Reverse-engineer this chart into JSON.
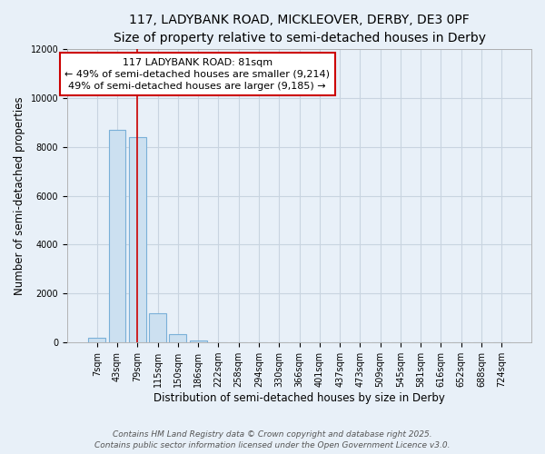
{
  "title_line1": "117, LADYBANK ROAD, MICKLEOVER, DERBY, DE3 0PF",
  "title_line2": "Size of property relative to semi-detached houses in Derby",
  "xlabel": "Distribution of semi-detached houses by size in Derby",
  "ylabel": "Number of semi-detached properties",
  "bin_labels": [
    "7sqm",
    "43sqm",
    "79sqm",
    "115sqm",
    "150sqm",
    "186sqm",
    "222sqm",
    "258sqm",
    "294sqm",
    "330sqm",
    "366sqm",
    "401sqm",
    "437sqm",
    "473sqm",
    "509sqm",
    "545sqm",
    "581sqm",
    "616sqm",
    "652sqm",
    "688sqm",
    "724sqm"
  ],
  "bar_heights": [
    200,
    8700,
    8400,
    1200,
    350,
    100,
    0,
    0,
    0,
    0,
    0,
    0,
    0,
    0,
    0,
    0,
    0,
    0,
    0,
    0,
    0
  ],
  "bar_color": "#cce0f0",
  "bar_edge_color": "#7ab0d8",
  "bar_edge_width": 0.8,
  "red_line_x": 2.0,
  "annotation_title": "117 LADYBANK ROAD: 81sqm",
  "annotation_line2": "← 49% of semi-detached houses are smaller (9,214)",
  "annotation_line3": "49% of semi-detached houses are larger (9,185) →",
  "annotation_box_color": "#cc0000",
  "ylim": [
    0,
    12000
  ],
  "yticks": [
    0,
    2000,
    4000,
    6000,
    8000,
    10000,
    12000
  ],
  "grid_color": "#c8d4e0",
  "background_color": "#e8f0f8",
  "footer_line1": "Contains HM Land Registry data © Crown copyright and database right 2025.",
  "footer_line2": "Contains public sector information licensed under the Open Government Licence v3.0.",
  "title_fontsize": 10,
  "subtitle_fontsize": 9,
  "axis_label_fontsize": 8.5,
  "tick_fontsize": 7,
  "annotation_fontsize": 8,
  "footer_fontsize": 6.5
}
